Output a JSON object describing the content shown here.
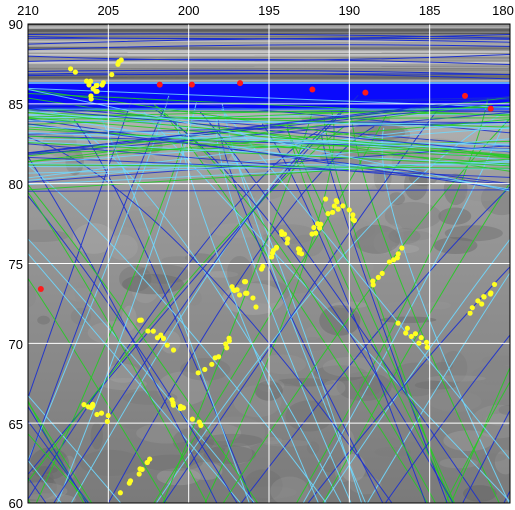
{
  "map": {
    "x_axis": {
      "ticks": [
        210,
        205,
        200,
        195,
        190,
        185,
        180
      ],
      "labels": [
        "210",
        "205",
        "200",
        "195",
        "190",
        "185",
        "180"
      ],
      "range": [
        210,
        180
      ],
      "direction": "decreasing-left-to-right"
    },
    "y_axis": {
      "ticks": [
        90,
        85,
        80,
        75,
        70,
        65,
        60
      ],
      "labels": [
        "90",
        "85",
        "80",
        "75",
        "70",
        "65",
        "60"
      ],
      "range": [
        60,
        90
      ]
    },
    "grid": true,
    "colors": {
      "background_terrain": "#8a8a8a",
      "polar_band": "#0000ff",
      "track_dark_blue": "#1a2fd0",
      "track_light_blue": "#6fd8ff",
      "track_green": "#22cc22",
      "yellow_points": "#ffff22",
      "red_points": "#ff1a1a",
      "grid": "#ffffff"
    },
    "red_points": [
      {
        "lon": 201.8,
        "lat": 86.2
      },
      {
        "lon": 199.8,
        "lat": 86.2
      },
      {
        "lon": 196.8,
        "lat": 86.3
      },
      {
        "lon": 192.3,
        "lat": 85.9
      },
      {
        "lon": 189.0,
        "lat": 85.7
      },
      {
        "lon": 182.8,
        "lat": 85.5
      },
      {
        "lon": 181.2,
        "lat": 84.7
      },
      {
        "lon": 209.2,
        "lat": 73.4
      }
    ],
    "yellow_clusters": [
      {
        "lon": 206.5,
        "lat": 86.6
      },
      {
        "lon": 205.2,
        "lat": 86.5
      },
      {
        "lon": 190.5,
        "lat": 78.5
      },
      {
        "lon": 191.5,
        "lat": 77.8
      },
      {
        "lon": 193.5,
        "lat": 76.2
      },
      {
        "lon": 195.5,
        "lat": 74.8
      },
      {
        "lon": 196.5,
        "lat": 73.0
      },
      {
        "lon": 198.5,
        "lat": 69.0
      },
      {
        "lon": 200.0,
        "lat": 65.5
      },
      {
        "lon": 187.5,
        "lat": 75.0
      },
      {
        "lon": 186.0,
        "lat": 70.5
      },
      {
        "lon": 181.5,
        "lat": 73.0
      },
      {
        "lon": 206.0,
        "lat": 66.0
      },
      {
        "lon": 203.5,
        "lat": 61.5
      },
      {
        "lon": 202.0,
        "lat": 70.5
      }
    ]
  }
}
